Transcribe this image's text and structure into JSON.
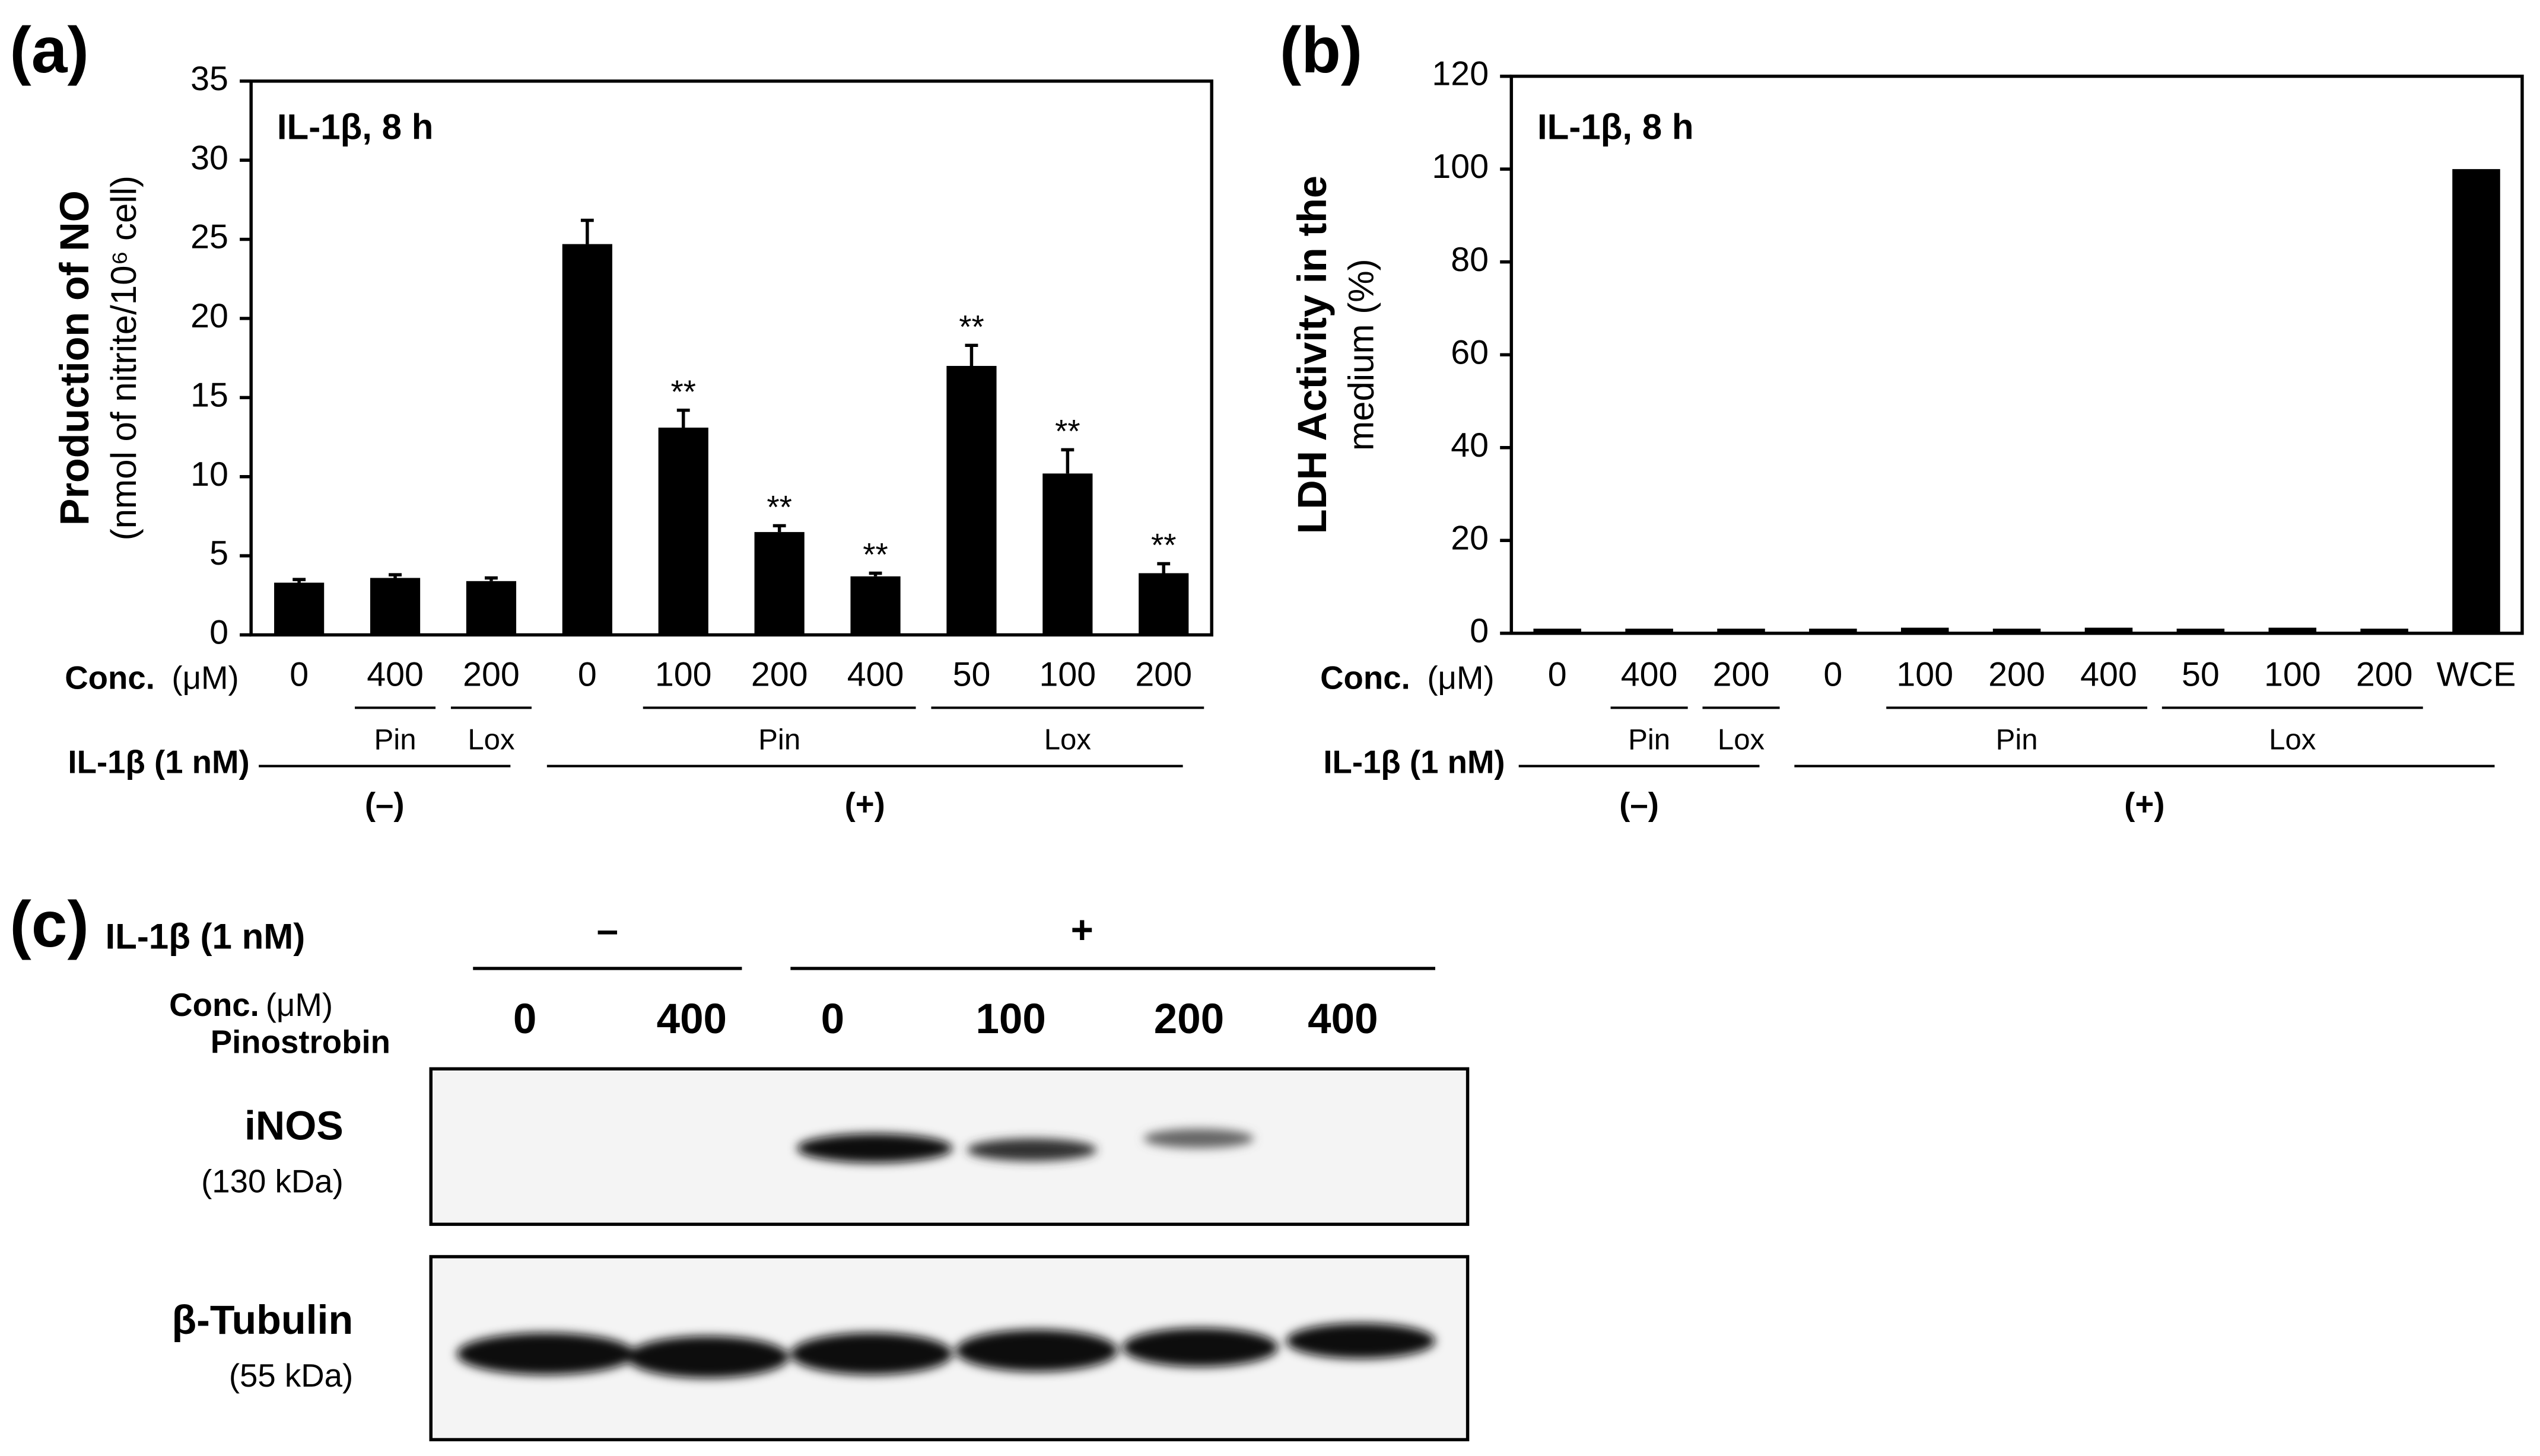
{
  "chart_data": [
    {
      "type": "bar",
      "panel_label": "(a)",
      "annotation": "IL-1β, 8 h",
      "ylabel": "Production of NO",
      "ylabel_sub": "(nmol of nitrite/10⁶ cell)",
      "conc_label": "Conc.",
      "conc_unit": "(μM)",
      "treatment_label": "IL-1β (1 nM)",
      "categories": [
        "0",
        "400",
        "200",
        "0",
        "100",
        "200",
        "400",
        "50",
        "100",
        "200"
      ],
      "values": [
        3.3,
        3.6,
        3.4,
        24.7,
        13.1,
        6.5,
        3.7,
        17.0,
        10.2,
        3.9
      ],
      "errors": [
        0.2,
        0.2,
        0.2,
        1.5,
        1.1,
        0.4,
        0.2,
        1.3,
        1.5,
        0.6
      ],
      "significance": [
        null,
        null,
        null,
        null,
        "**",
        "**",
        "**",
        "**",
        "**",
        "**"
      ],
      "subgroups": [
        "Pin",
        "Lox",
        "Pin",
        "Lox"
      ],
      "groups": [
        "(–)",
        "(+)"
      ],
      "color": "#000000",
      "ylim": [
        0,
        35
      ],
      "yticks": [
        0,
        5,
        10,
        15,
        20,
        25,
        30,
        35
      ]
    },
    {
      "type": "bar",
      "panel_label": "(b)",
      "annotation": "IL-1β, 8 h",
      "ylabel": "LDH Activity in the",
      "ylabel_sub": "medium (%)",
      "conc_label": "Conc.",
      "conc_unit": "(μM)",
      "treatment_label": "IL-1β (1 nM)",
      "categories": [
        "0",
        "400",
        "200",
        "0",
        "100",
        "200",
        "400",
        "50",
        "100",
        "200",
        "WCE"
      ],
      "values": [
        1.0,
        1.0,
        1.0,
        1.0,
        1.2,
        1.0,
        1.2,
        1.0,
        1.2,
        1.0,
        100
      ],
      "subgroups": [
        "Pin",
        "Lox",
        "Pin",
        "Lox"
      ],
      "groups": [
        "(–)",
        "(+)"
      ],
      "color": "#000000",
      "ylim": [
        0,
        120
      ],
      "yticks": [
        0,
        20,
        40,
        60,
        80,
        100,
        120
      ]
    }
  ],
  "blot": {
    "panel_label": "(c)",
    "treatment_label": "IL-1β (1 nM)",
    "minus": "–",
    "plus": "+",
    "conc_label": "Conc.",
    "conc_unit": "(μM)",
    "compound": "Pinostrobin",
    "lanes": [
      "0",
      "400",
      "0",
      "100",
      "200",
      "400"
    ],
    "rows": [
      {
        "name": "iNOS",
        "size": "(130 kDa)"
      },
      {
        "name": "β-Tubulin",
        "size": "(55 kDa)"
      }
    ]
  }
}
